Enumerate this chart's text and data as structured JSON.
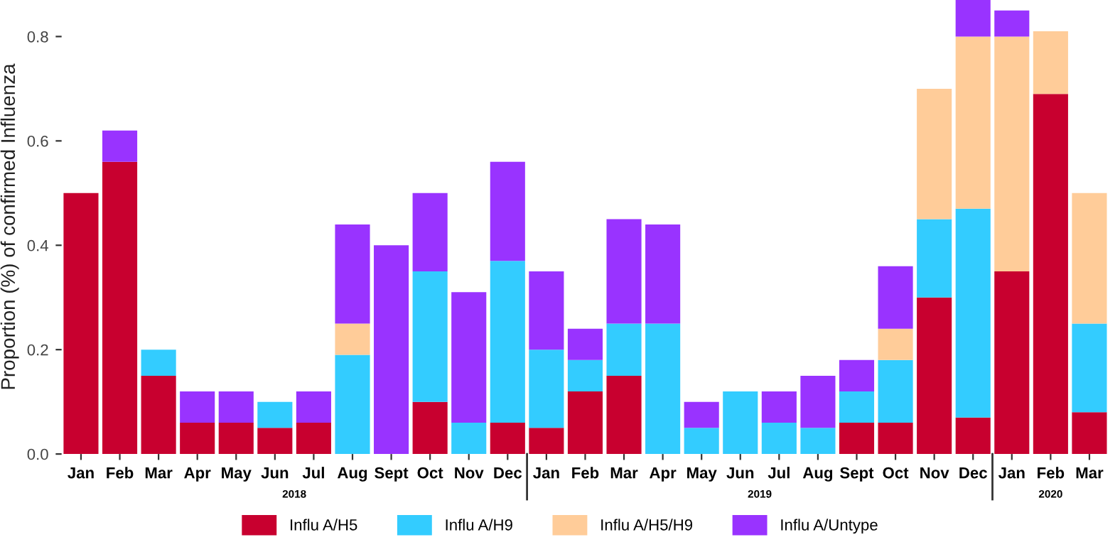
{
  "chart_data": {
    "type": "bar",
    "stacked": true,
    "ylabel": "Proportion (%) of confirmed Influenza",
    "categories": [
      "Jan",
      "Feb",
      "Mar",
      "Apr",
      "May",
      "Jun",
      "Jul",
      "Aug",
      "Sept",
      "Oct",
      "Nov",
      "Dec",
      "Jan",
      "Feb",
      "Mar",
      "Apr",
      "May",
      "Jun",
      "Jul",
      "Aug",
      "Sept",
      "Oct",
      "Nov",
      "Dec",
      "Jan",
      "Feb",
      "Mar"
    ],
    "series": [
      {
        "name": "Influ A/H5",
        "color": "#c8002f",
        "values": [
          0.5,
          0.56,
          0.15,
          0.06,
          0.06,
          0.05,
          0.06,
          0,
          0,
          0.1,
          0,
          0.06,
          0.05,
          0.12,
          0.15,
          0,
          0,
          0,
          0,
          0,
          0.06,
          0.06,
          0.3,
          0.07,
          0.35,
          0.69,
          0.08
        ]
      },
      {
        "name": "Influ A/H9",
        "color": "#33ccff",
        "values": [
          0,
          0,
          0.05,
          0,
          0,
          0.05,
          0,
          0.19,
          0,
          0.25,
          0.06,
          0.31,
          0.15,
          0.06,
          0.1,
          0.25,
          0.05,
          0.12,
          0.06,
          0.05,
          0.06,
          0.12,
          0.15,
          0.4,
          0,
          0,
          0.17
        ]
      },
      {
        "name": "Influ A/H5/H9",
        "color": "#ffcc99",
        "values": [
          0,
          0,
          0,
          0,
          0,
          0,
          0,
          0.06,
          0,
          0,
          0,
          0,
          0,
          0,
          0,
          0,
          0,
          0,
          0,
          0,
          0,
          0.06,
          0.25,
          0.33,
          0.45,
          0.12,
          0.25
        ]
      },
      {
        "name": "Influ A/Untype",
        "color": "#9933ff",
        "values": [
          0,
          0.06,
          0,
          0.06,
          0.06,
          0,
          0.06,
          0.19,
          0.4,
          0.15,
          0.25,
          0.19,
          0.15,
          0.06,
          0.2,
          0.19,
          0.05,
          0,
          0.06,
          0.1,
          0.06,
          0.12,
          0,
          0.07,
          0.05,
          0,
          0
        ]
      }
    ],
    "ylim": [
      0,
      0.87
    ],
    "yticks": [
      {
        "value": 0,
        "label": "0.0"
      },
      {
        "value": 0.2,
        "label": "0.2"
      },
      {
        "value": 0.4,
        "label": "0.4"
      },
      {
        "value": 0.6,
        "label": "0.6"
      },
      {
        "value": 0.8,
        "label": "0.8"
      }
    ],
    "annotations": [
      "2018",
      "2019",
      "2020"
    ],
    "grid": false,
    "legend": "bottom"
  }
}
